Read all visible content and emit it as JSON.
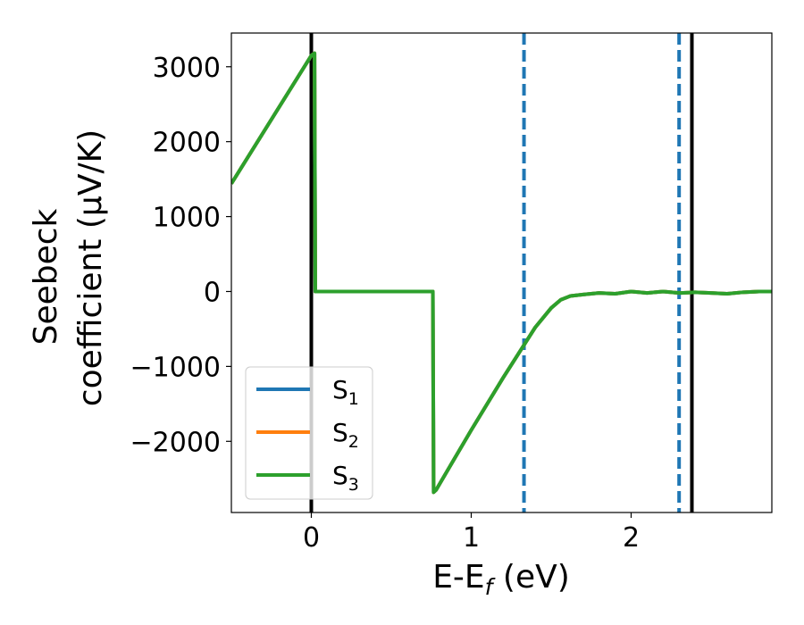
{
  "chart_data": {
    "type": "line",
    "xlabel": "E-E",
    "xlabel_sub": "f",
    "xlabel_unit": " (eV)",
    "ylabel_line1": "Seebeck",
    "ylabel_line2": "coefficient  (μV/K)",
    "xlim": [
      -0.5,
      2.88
    ],
    "ylim": [
      -2950,
      3450
    ],
    "xticks": [
      0,
      1,
      2
    ],
    "xtick_labels": [
      "0",
      "1",
      "2"
    ],
    "yticks": [
      3000,
      2000,
      1000,
      0,
      -1000,
      -2000
    ],
    "ytick_labels": [
      "3000",
      "2000",
      "1000",
      "0",
      "−1000",
      "−2000"
    ],
    "grid": false,
    "legend_position": "lower-left",
    "series": [
      {
        "name": "S",
        "sub": "1",
        "color": "#1f77b4",
        "x": [
          -0.5,
          0.0,
          0.02,
          0.025,
          0.76,
          0.765,
          0.78,
          1.0,
          1.2,
          1.4,
          1.5,
          1.56,
          1.62,
          1.7,
          1.8,
          1.9,
          2.0,
          2.1,
          2.2,
          2.3,
          2.4,
          2.5,
          2.6,
          2.7,
          2.8,
          2.88
        ],
        "y": [
          1440,
          3150,
          3180,
          0,
          0,
          -2680,
          -2650,
          -1850,
          -1150,
          -480,
          -220,
          -110,
          -60,
          -40,
          -20,
          -30,
          0,
          -20,
          0,
          -20,
          -10,
          -20,
          -30,
          -10,
          0,
          0
        ]
      },
      {
        "name": "S",
        "sub": "2",
        "color": "#ff7f0e",
        "x": [
          -0.5,
          0.0,
          0.02,
          0.025,
          0.76,
          0.765,
          0.78,
          1.0,
          1.2,
          1.4,
          1.5,
          1.56,
          1.62,
          1.7,
          1.8,
          1.9,
          2.0,
          2.1,
          2.2,
          2.3,
          2.4,
          2.5,
          2.6,
          2.7,
          2.8,
          2.88
        ],
        "y": [
          1440,
          3150,
          3180,
          0,
          0,
          -2680,
          -2650,
          -1850,
          -1150,
          -480,
          -220,
          -110,
          -60,
          -40,
          -20,
          -30,
          0,
          -20,
          0,
          -20,
          -10,
          -20,
          -30,
          -10,
          0,
          0
        ]
      },
      {
        "name": "S",
        "sub": "3",
        "color": "#2ca02c",
        "x": [
          -0.5,
          0.0,
          0.02,
          0.025,
          0.76,
          0.765,
          0.78,
          1.0,
          1.2,
          1.4,
          1.5,
          1.56,
          1.62,
          1.7,
          1.8,
          1.9,
          2.0,
          2.1,
          2.2,
          2.3,
          2.4,
          2.5,
          2.6,
          2.7,
          2.8,
          2.88
        ],
        "y": [
          1440,
          3150,
          3180,
          0,
          0,
          -2680,
          -2650,
          -1850,
          -1150,
          -480,
          -220,
          -110,
          -60,
          -40,
          -20,
          -30,
          0,
          -20,
          0,
          -20,
          -10,
          -20,
          -30,
          -10,
          0,
          0
        ]
      }
    ],
    "vlines": [
      {
        "x": 0.0,
        "color": "#000000",
        "style": "solid"
      },
      {
        "x": 2.38,
        "color": "#000000",
        "style": "solid"
      },
      {
        "x": 1.33,
        "color": "#1f77b4",
        "style": "dashed"
      },
      {
        "x": 2.3,
        "color": "#1f77b4",
        "style": "dashed"
      }
    ]
  }
}
